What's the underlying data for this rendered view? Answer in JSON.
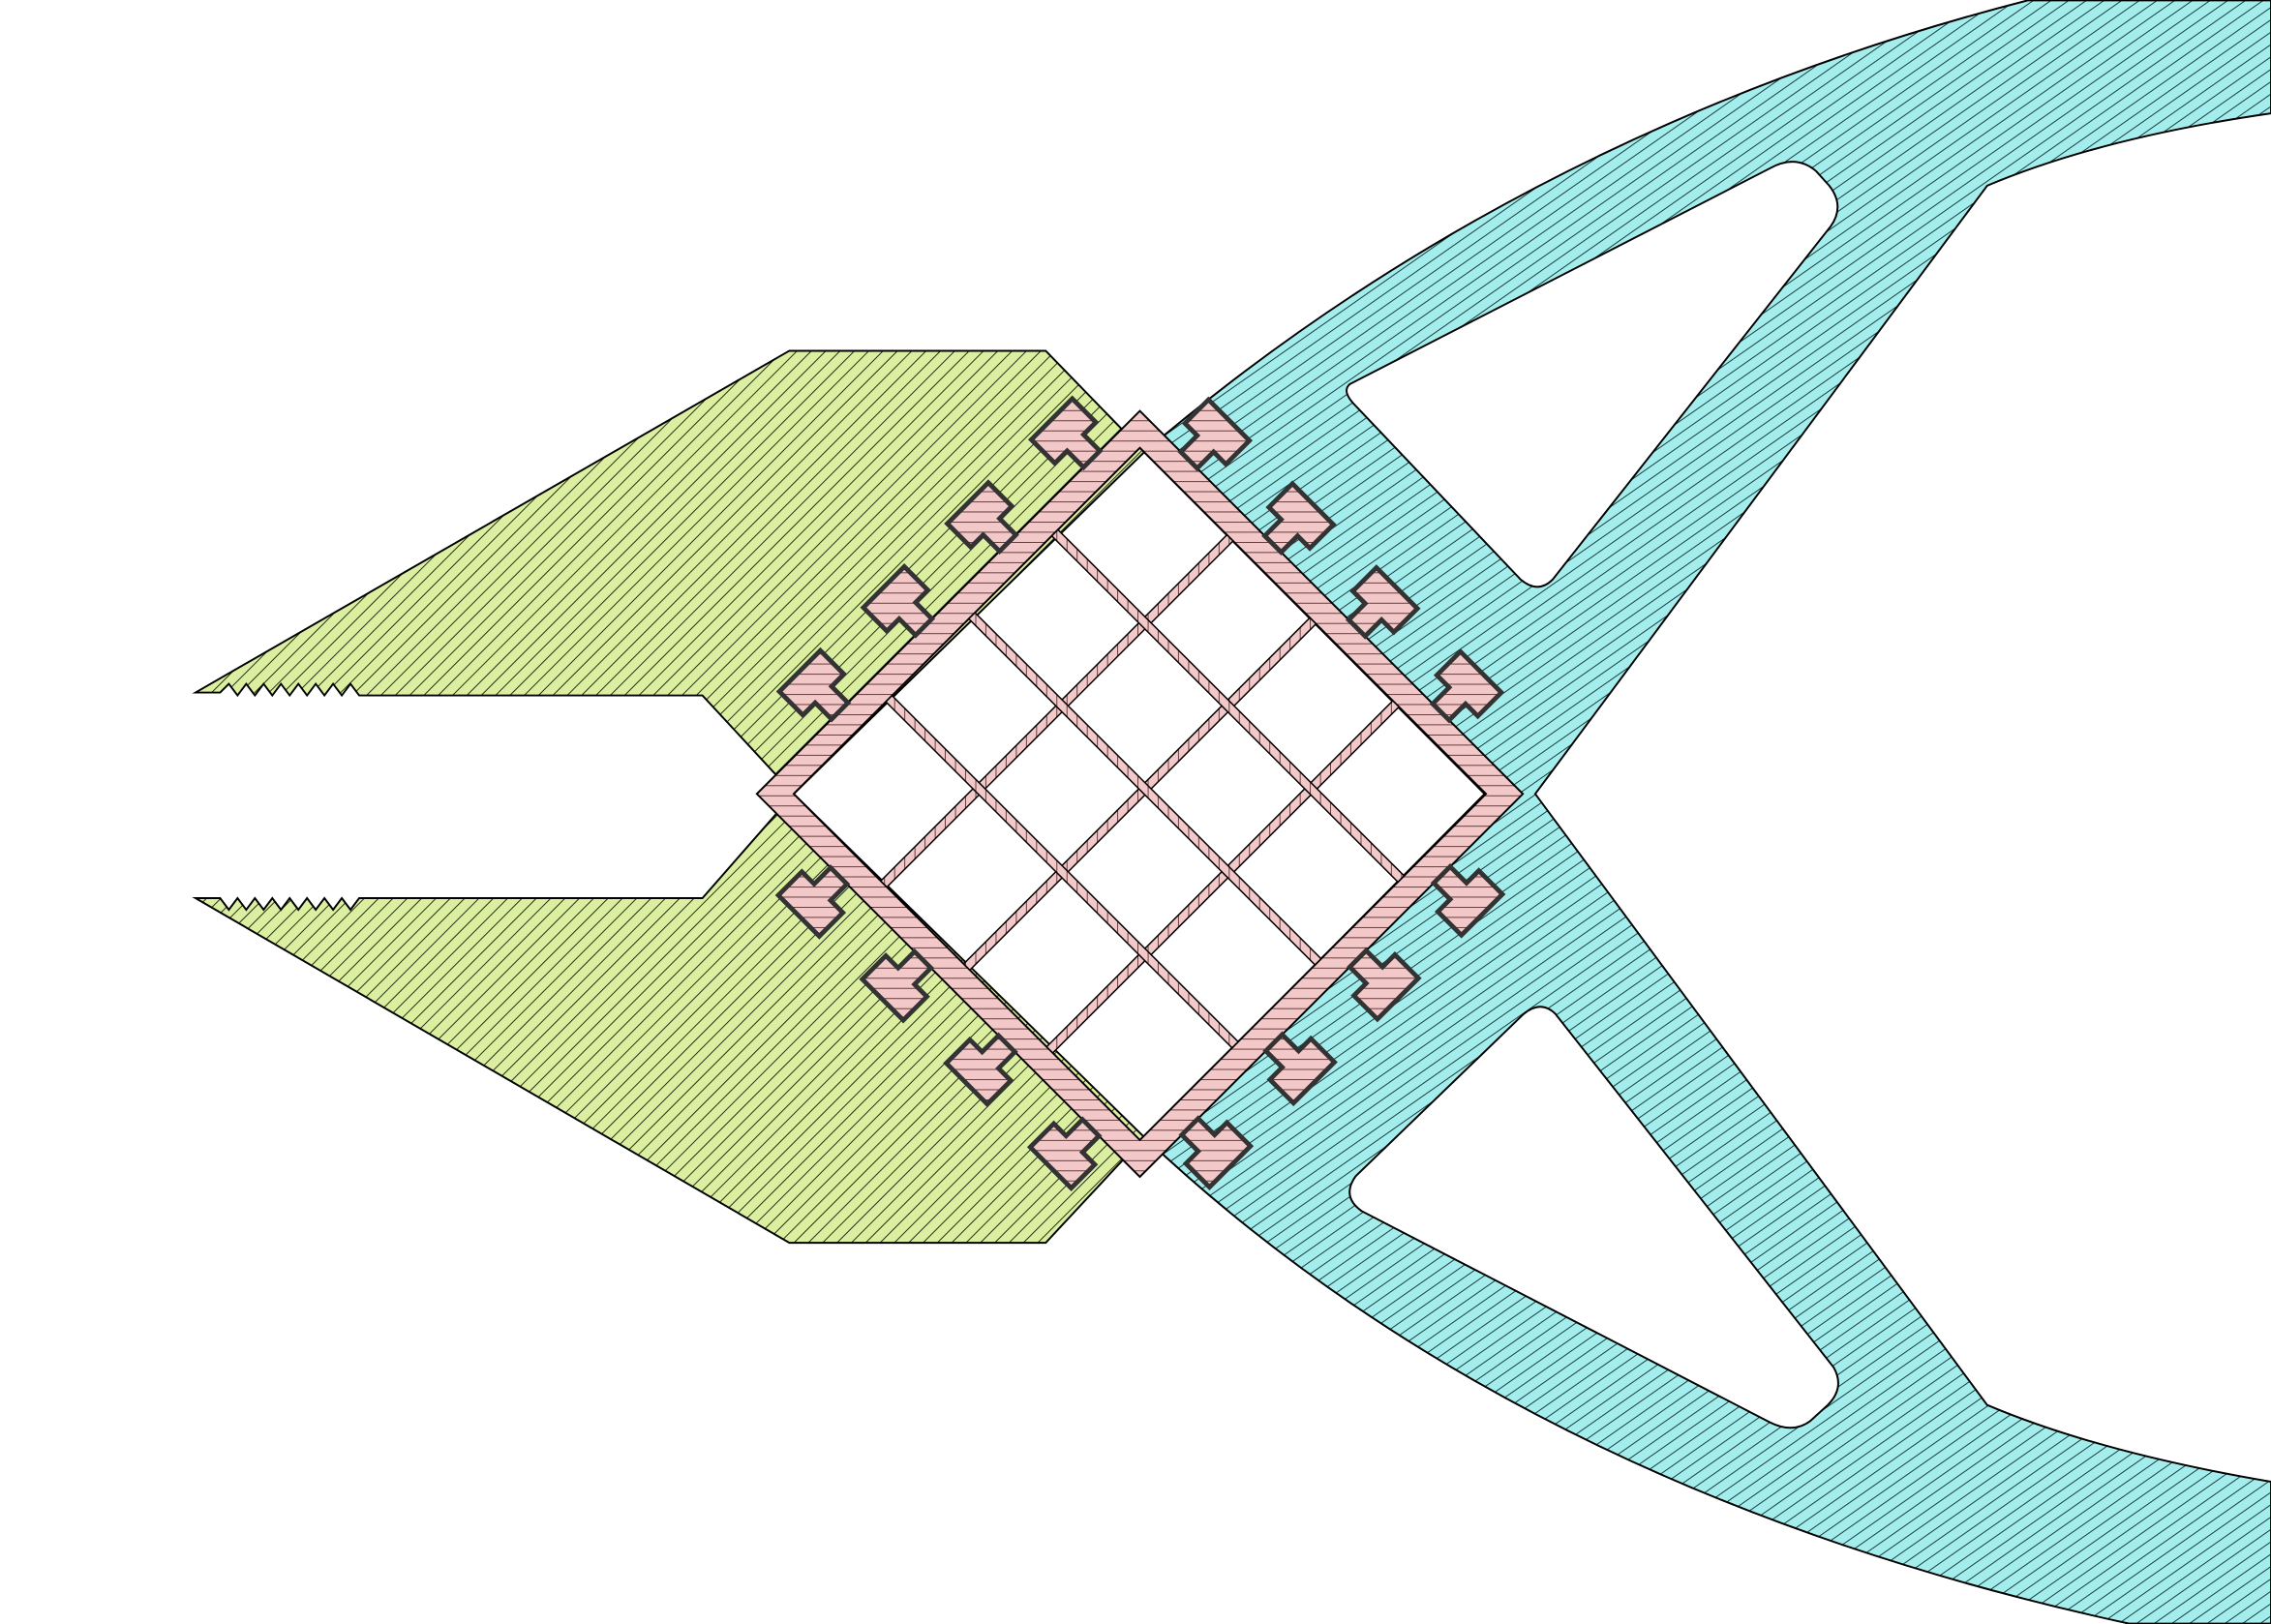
{
  "title": "",
  "parts": [
    {
      "id": "jaw",
      "fill_color": "#dcefa0",
      "hatch_color": "#1c2b12"
    },
    {
      "id": "handle",
      "fill_color": "#a4eded",
      "hatch_color": "#0e2a2a"
    },
    {
      "id": "lattice",
      "fill_color": "#f2c8c8",
      "hatch_color": "#4a2020"
    }
  ],
  "colors": {
    "background": "#ffffff",
    "outline": "#000000",
    "lock_outline": "#333333"
  }
}
